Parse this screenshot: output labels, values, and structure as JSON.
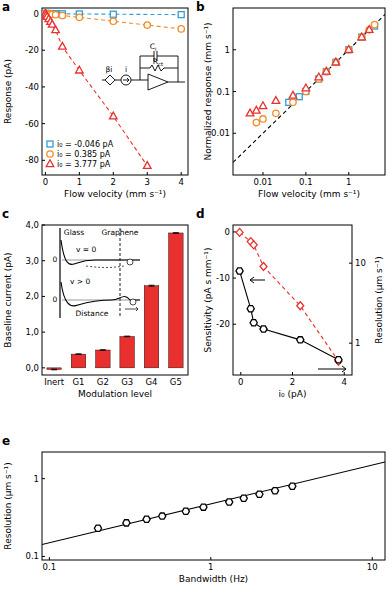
{
  "chart_data": [
    {
      "type": "scatter",
      "title": "a",
      "x_label": "Flow velocity (mm s⁻¹)",
      "y_label": "Response (pA)",
      "xlim": [
        -0.1,
        4.2
      ],
      "ylim": [
        -88,
        3
      ],
      "xticks": [
        0,
        1,
        2,
        3,
        4
      ],
      "yticks": [
        0,
        -20,
        -40,
        -60,
        -80
      ],
      "legend": "bottom left",
      "series": [
        {
          "name": "i₀ = -0.046 pA",
          "color": "#2e9fd9",
          "marker": "square",
          "line_style": "dashed",
          "x": [
            0,
            0.02,
            0.05,
            0.1,
            0.15,
            0.2,
            0.3,
            0.5,
            1,
            2,
            4
          ],
          "values": [
            0,
            -0.02,
            -0.03,
            -0.05,
            -0.06,
            -0.07,
            -0.1,
            -0.15,
            -0.25,
            -0.4,
            -0.6
          ]
        },
        {
          "name": "i₀ = 0.385 pA",
          "color": "#f28c28",
          "marker": "circle",
          "line_style": "dashed",
          "x": [
            0,
            0.02,
            0.05,
            0.1,
            0.15,
            0.2,
            0.3,
            0.5,
            1,
            2,
            3,
            4
          ],
          "values": [
            0,
            -0.1,
            -0.15,
            -0.25,
            -0.35,
            -0.45,
            -0.65,
            -1.1,
            -2.1,
            -4.2,
            -6.3,
            -8.4
          ]
        },
        {
          "name": "i₀ = 3.777 pA",
          "color": "#e8312e",
          "marker": "triangle",
          "line_style": "dashed",
          "x": [
            0,
            0.02,
            0.05,
            0.1,
            0.15,
            0.2,
            0.3,
            0.5,
            1,
            2,
            3
          ],
          "values": [
            0,
            -1,
            -1.8,
            -3,
            -4.5,
            -6,
            -9,
            -18,
            -31,
            -56,
            -83
          ]
        }
      ],
      "annotations": [
        "βi",
        "i",
        "Ci",
        "Rct"
      ]
    },
    {
      "type": "scatter",
      "title": "b",
      "x_label": "Flow velocity (mm s⁻¹)",
      "y_label": "Normalized response (mm s⁻¹)",
      "log": true,
      "xlim": [
        0.002,
        7
      ],
      "ylim": [
        0.001,
        10
      ],
      "xticks": [
        0.01,
        0.1,
        1
      ],
      "yticks": [
        0.01,
        0.1,
        1
      ],
      "series": [
        {
          "type": "line",
          "color": "#000000",
          "line_style": "dashed",
          "x": [
            0.002,
            7
          ],
          "values": [
            0.002,
            7
          ]
        },
        {
          "color": "#2e9fd9",
          "marker": "square",
          "x": [
            0.04,
            0.07,
            0.1,
            0.2,
            0.3,
            0.5,
            1,
            2,
            4
          ],
          "values": [
            0.055,
            0.075,
            0.1,
            0.2,
            0.3,
            0.5,
            1,
            2,
            3.7
          ]
        },
        {
          "color": "#f28c28",
          "marker": "circle",
          "x": [
            0.007,
            0.01,
            0.02,
            0.05,
            0.1,
            0.2,
            0.3,
            0.5,
            1,
            2,
            3,
            4
          ],
          "values": [
            0.018,
            0.022,
            0.03,
            0.055,
            0.1,
            0.2,
            0.3,
            0.5,
            1,
            2,
            3,
            4
          ]
        },
        {
          "color": "#e8312e",
          "marker": "triangle",
          "x": [
            0.005,
            0.007,
            0.01,
            0.02,
            0.05,
            0.1,
            0.2,
            0.3,
            0.5,
            1,
            2,
            3
          ],
          "values": [
            0.03,
            0.035,
            0.045,
            0.06,
            0.08,
            0.12,
            0.22,
            0.3,
            0.5,
            1,
            2,
            3
          ]
        }
      ]
    },
    {
      "type": "bar",
      "title": "c",
      "x_label": "Modulation level",
      "y_label": "Baseline current (pA)",
      "categories": [
        "Inert",
        "G1",
        "G2",
        "G3",
        "G4",
        "G5"
      ],
      "values": [
        -0.046,
        0.385,
        0.5,
        0.88,
        2.3,
        3.777
      ],
      "errors": [
        0.01,
        0.01,
        0.01,
        0.01,
        0.015,
        0.01
      ],
      "color": "#e8312e",
      "ylim": [
        -0.2,
        4.0
      ],
      "yticks": [
        {
          "value": 0,
          "label": "0,0"
        },
        {
          "value": 1,
          "label": "1,0"
        },
        {
          "value": 2,
          "label": "2,0"
        },
        {
          "value": 3,
          "label": "3,0"
        },
        {
          "value": 4,
          "label": "4,0"
        }
      ],
      "annotations": [
        "Glass",
        "Graphene",
        "v = 0",
        "v > 0",
        "Distance",
        "0",
        "0"
      ]
    },
    {
      "type": "line",
      "title": "d",
      "x_label": "i₀ (pA)",
      "y_label": "Sensitivity (pA s mm⁻¹)",
      "y2_label": "Resolution (µm s⁻¹)",
      "log": "y2",
      "xlim": [
        -0.3,
        4.3
      ],
      "ylim": [
        -31,
        1.5
      ],
      "xticks": [
        0,
        2,
        4
      ],
      "yticks": [
        0,
        -10,
        -20
      ],
      "y2lim": [
        0.4,
        30
      ],
      "y2ticks": [
        1,
        10
      ],
      "series": [
        {
          "color": "#e8312e",
          "marker": "diamond",
          "line_style": "dashed",
          "x": [
            -0.046,
            0.385,
            0.5,
            0.88,
            2.3,
            3.777
          ],
          "values": [
            -0.1,
            -2.1,
            -2.8,
            -7.5,
            -16,
            -28
          ]
        },
        {
          "color": "#000000",
          "marker": "hexagon",
          "line_style": "solid",
          "axis": "y2",
          "x": [
            -0.046,
            0.385,
            0.5,
            0.88,
            2.3,
            3.777
          ],
          "values": [
            8,
            2.7,
            1.8,
            1.5,
            1.1,
            0.62
          ]
        }
      ]
    },
    {
      "type": "scatter",
      "title": "e",
      "x_label": "Bandwidth (Hz)",
      "y_label": "Resolution (µm s⁻¹)",
      "log": true,
      "xlim": [
        0.09,
        12
      ],
      "ylim": [
        0.09,
        2.2
      ],
      "xticks": [
        0.1,
        1,
        10
      ],
      "yticks": [
        0.1,
        1
      ],
      "series": [
        {
          "type": "line",
          "color": "#000000",
          "line_style": "solid",
          "x": [
            0.09,
            12
          ],
          "values": [
            0.142,
            1.64
          ]
        },
        {
          "color": "#000000",
          "marker": "hexagon",
          "x": [
            0.2,
            0.3,
            0.4,
            0.5,
            0.7,
            0.9,
            1.3,
            1.6,
            2,
            2.5,
            3.2
          ],
          "values": [
            0.23,
            0.27,
            0.3,
            0.33,
            0.38,
            0.43,
            0.5,
            0.56,
            0.63,
            0.7,
            0.8
          ]
        }
      ]
    }
  ]
}
